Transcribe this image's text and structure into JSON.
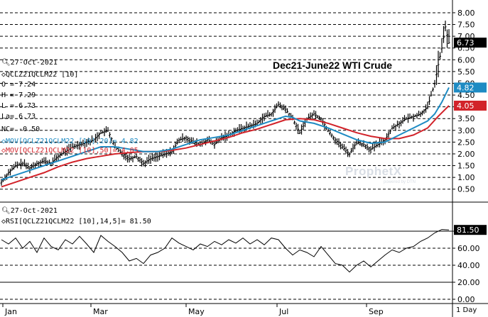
{
  "header": {
    "date": "27-Oct-2021",
    "symbol": "QCLZ21QCLM22 [10]",
    "open": "O = 7.24",
    "high": "H = 7.29",
    "low": "L = 6.73",
    "last": "La= 6.73",
    "net_change": "NC= -0.50",
    "ma20": "MOV[QCLZ21QCLM22 [10],20]= 4.82",
    "ma50": "MOV[QCLZ21QCLM22 [10],50]= 4.05"
  },
  "rsi_header": {
    "date": "27-Oct-2021",
    "rsi": "RSI[QCLZ21QCLM22 [10],14,5]= 81.50"
  },
  "title": "Dec21-June22 WTI Crude",
  "watermark": {
    "name": "ProphetX",
    "sub": "powered by DTN"
  },
  "period_label": "1 Day",
  "colors": {
    "price": "#000000",
    "ma20": "#1e8bc3",
    "ma50": "#d2232a",
    "rsi": "#000000",
    "grid": "#000000",
    "background": "#ffffff"
  },
  "chart_data": {
    "type": "ohlc",
    "x_labels": [
      "Jan",
      "Mar",
      "May",
      "Jul",
      "Sep"
    ],
    "price_axis": {
      "ticks": [
        "8.00",
        "7.50",
        "7.00",
        "6.50",
        "6.00",
        "5.50",
        "5.00",
        "4.50",
        "4.00",
        "3.50",
        "3.00",
        "2.50",
        "2.00",
        "1.50",
        "1.00",
        "0.50"
      ],
      "ylim": [
        0.1,
        8.3
      ]
    },
    "price_markers": [
      {
        "label": "6.73",
        "value": 6.73,
        "series": "last"
      },
      {
        "label": "4.82",
        "value": 4.82,
        "series": "ma20"
      },
      {
        "label": "4.05",
        "value": 4.05,
        "series": "ma50"
      }
    ],
    "price_path": [
      [
        0,
        0.8
      ],
      [
        10,
        1.2
      ],
      [
        20,
        1.5
      ],
      [
        30,
        1.6
      ],
      [
        40,
        1.4
      ],
      [
        50,
        1.6
      ],
      [
        60,
        1.7
      ],
      [
        70,
        1.6
      ],
      [
        80,
        1.9
      ],
      [
        90,
        2.1
      ],
      [
        100,
        2.3
      ],
      [
        110,
        2.4
      ],
      [
        120,
        2.5
      ],
      [
        130,
        2.6
      ],
      [
        140,
        2.9
      ],
      [
        150,
        3.0
      ],
      [
        160,
        2.3
      ],
      [
        170,
        2.0
      ],
      [
        180,
        1.8
      ],
      [
        190,
        1.9
      ],
      [
        200,
        1.6
      ],
      [
        210,
        1.8
      ],
      [
        220,
        1.9
      ],
      [
        230,
        2.0
      ],
      [
        240,
        2.1
      ],
      [
        250,
        2.6
      ],
      [
        260,
        2.7
      ],
      [
        270,
        2.5
      ],
      [
        280,
        2.4
      ],
      [
        290,
        2.6
      ],
      [
        300,
        2.4
      ],
      [
        310,
        2.7
      ],
      [
        320,
        2.8
      ],
      [
        330,
        3.0
      ],
      [
        340,
        3.1
      ],
      [
        350,
        3.2
      ],
      [
        360,
        3.3
      ],
      [
        370,
        3.6
      ],
      [
        380,
        3.7
      ],
      [
        390,
        4.1
      ],
      [
        400,
        3.9
      ],
      [
        410,
        3.5
      ],
      [
        420,
        2.9
      ],
      [
        430,
        3.5
      ],
      [
        440,
        3.7
      ],
      [
        450,
        3.5
      ],
      [
        460,
        3.0
      ],
      [
        470,
        2.6
      ],
      [
        480,
        2.3
      ],
      [
        490,
        2.0
      ],
      [
        500,
        2.5
      ],
      [
        510,
        2.4
      ],
      [
        520,
        2.2
      ],
      [
        530,
        2.4
      ],
      [
        540,
        2.6
      ],
      [
        550,
        3.1
      ],
      [
        560,
        3.3
      ],
      [
        570,
        3.5
      ],
      [
        580,
        3.6
      ],
      [
        590,
        3.7
      ],
      [
        600,
        4.0
      ],
      [
        605,
        4.5
      ],
      [
        610,
        5.0
      ],
      [
        615,
        5.8
      ],
      [
        620,
        6.5
      ],
      [
        625,
        7.4
      ],
      [
        630,
        6.73
      ]
    ],
    "ma20_path": [
      [
        0,
        0.9
      ],
      [
        20,
        1.1
      ],
      [
        40,
        1.3
      ],
      [
        60,
        1.5
      ],
      [
        80,
        1.7
      ],
      [
        100,
        1.9
      ],
      [
        120,
        2.1
      ],
      [
        140,
        2.3
      ],
      [
        160,
        2.3
      ],
      [
        180,
        2.2
      ],
      [
        200,
        2.1
      ],
      [
        220,
        2.1
      ],
      [
        240,
        2.2
      ],
      [
        260,
        2.4
      ],
      [
        280,
        2.6
      ],
      [
        300,
        2.7
      ],
      [
        320,
        2.8
      ],
      [
        340,
        3.0
      ],
      [
        360,
        3.2
      ],
      [
        380,
        3.4
      ],
      [
        400,
        3.6
      ],
      [
        410,
        3.55
      ],
      [
        420,
        3.4
      ],
      [
        440,
        3.3
      ],
      [
        460,
        3.1
      ],
      [
        480,
        2.85
      ],
      [
        500,
        2.6
      ],
      [
        520,
        2.45
      ],
      [
        540,
        2.5
      ],
      [
        560,
        2.8
      ],
      [
        580,
        3.1
      ],
      [
        600,
        3.4
      ],
      [
        610,
        3.7
      ],
      [
        620,
        4.2
      ],
      [
        630,
        4.82
      ]
    ],
    "ma50_path": [
      [
        0,
        0.6
      ],
      [
        20,
        0.8
      ],
      [
        40,
        1.0
      ],
      [
        60,
        1.2
      ],
      [
        80,
        1.45
      ],
      [
        100,
        1.65
      ],
      [
        120,
        1.8
      ],
      [
        140,
        1.9
      ],
      [
        160,
        2.0
      ],
      [
        180,
        2.05
      ],
      [
        200,
        2.1
      ],
      [
        220,
        2.1
      ],
      [
        240,
        2.15
      ],
      [
        260,
        2.25
      ],
      [
        280,
        2.4
      ],
      [
        300,
        2.55
      ],
      [
        320,
        2.7
      ],
      [
        340,
        2.9
      ],
      [
        360,
        3.05
      ],
      [
        380,
        3.25
      ],
      [
        400,
        3.45
      ],
      [
        420,
        3.5
      ],
      [
        440,
        3.45
      ],
      [
        460,
        3.3
      ],
      [
        480,
        3.1
      ],
      [
        500,
        2.9
      ],
      [
        520,
        2.75
      ],
      [
        540,
        2.65
      ],
      [
        560,
        2.65
      ],
      [
        580,
        2.8
      ],
      [
        600,
        3.1
      ],
      [
        615,
        3.6
      ],
      [
        630,
        4.05
      ]
    ],
    "rsi_axis": {
      "ticks": [
        "80.00",
        "60.00",
        "40.00",
        "20.00",
        "0.00"
      ],
      "ylim": [
        -5,
        110
      ],
      "reference_lines": [
        80,
        20
      ]
    },
    "rsi_marker": {
      "label": "81.50",
      "value": 81.5
    },
    "rsi_path": [
      [
        0,
        70
      ],
      [
        10,
        65
      ],
      [
        20,
        72
      ],
      [
        30,
        60
      ],
      [
        40,
        68
      ],
      [
        50,
        55
      ],
      [
        60,
        72
      ],
      [
        70,
        62
      ],
      [
        80,
        58
      ],
      [
        90,
        70
      ],
      [
        100,
        65
      ],
      [
        110,
        74
      ],
      [
        120,
        65
      ],
      [
        130,
        55
      ],
      [
        140,
        75
      ],
      [
        150,
        68
      ],
      [
        160,
        62
      ],
      [
        170,
        55
      ],
      [
        180,
        45
      ],
      [
        190,
        48
      ],
      [
        200,
        42
      ],
      [
        210,
        52
      ],
      [
        220,
        55
      ],
      [
        230,
        60
      ],
      [
        240,
        72
      ],
      [
        250,
        66
      ],
      [
        260,
        62
      ],
      [
        270,
        58
      ],
      [
        280,
        65
      ],
      [
        290,
        62
      ],
      [
        300,
        68
      ],
      [
        310,
        64
      ],
      [
        320,
        70
      ],
      [
        330,
        66
      ],
      [
        340,
        72
      ],
      [
        350,
        65
      ],
      [
        360,
        70
      ],
      [
        370,
        64
      ],
      [
        380,
        72
      ],
      [
        390,
        70
      ],
      [
        400,
        60
      ],
      [
        410,
        52
      ],
      [
        420,
        58
      ],
      [
        430,
        55
      ],
      [
        440,
        50
      ],
      [
        450,
        62
      ],
      [
        460,
        52
      ],
      [
        470,
        42
      ],
      [
        480,
        40
      ],
      [
        490,
        32
      ],
      [
        500,
        40
      ],
      [
        510,
        45
      ],
      [
        520,
        38
      ],
      [
        530,
        45
      ],
      [
        540,
        52
      ],
      [
        550,
        58
      ],
      [
        560,
        55
      ],
      [
        570,
        60
      ],
      [
        580,
        62
      ],
      [
        590,
        68
      ],
      [
        600,
        72
      ],
      [
        610,
        78
      ],
      [
        620,
        82
      ],
      [
        630,
        81.5
      ]
    ]
  }
}
